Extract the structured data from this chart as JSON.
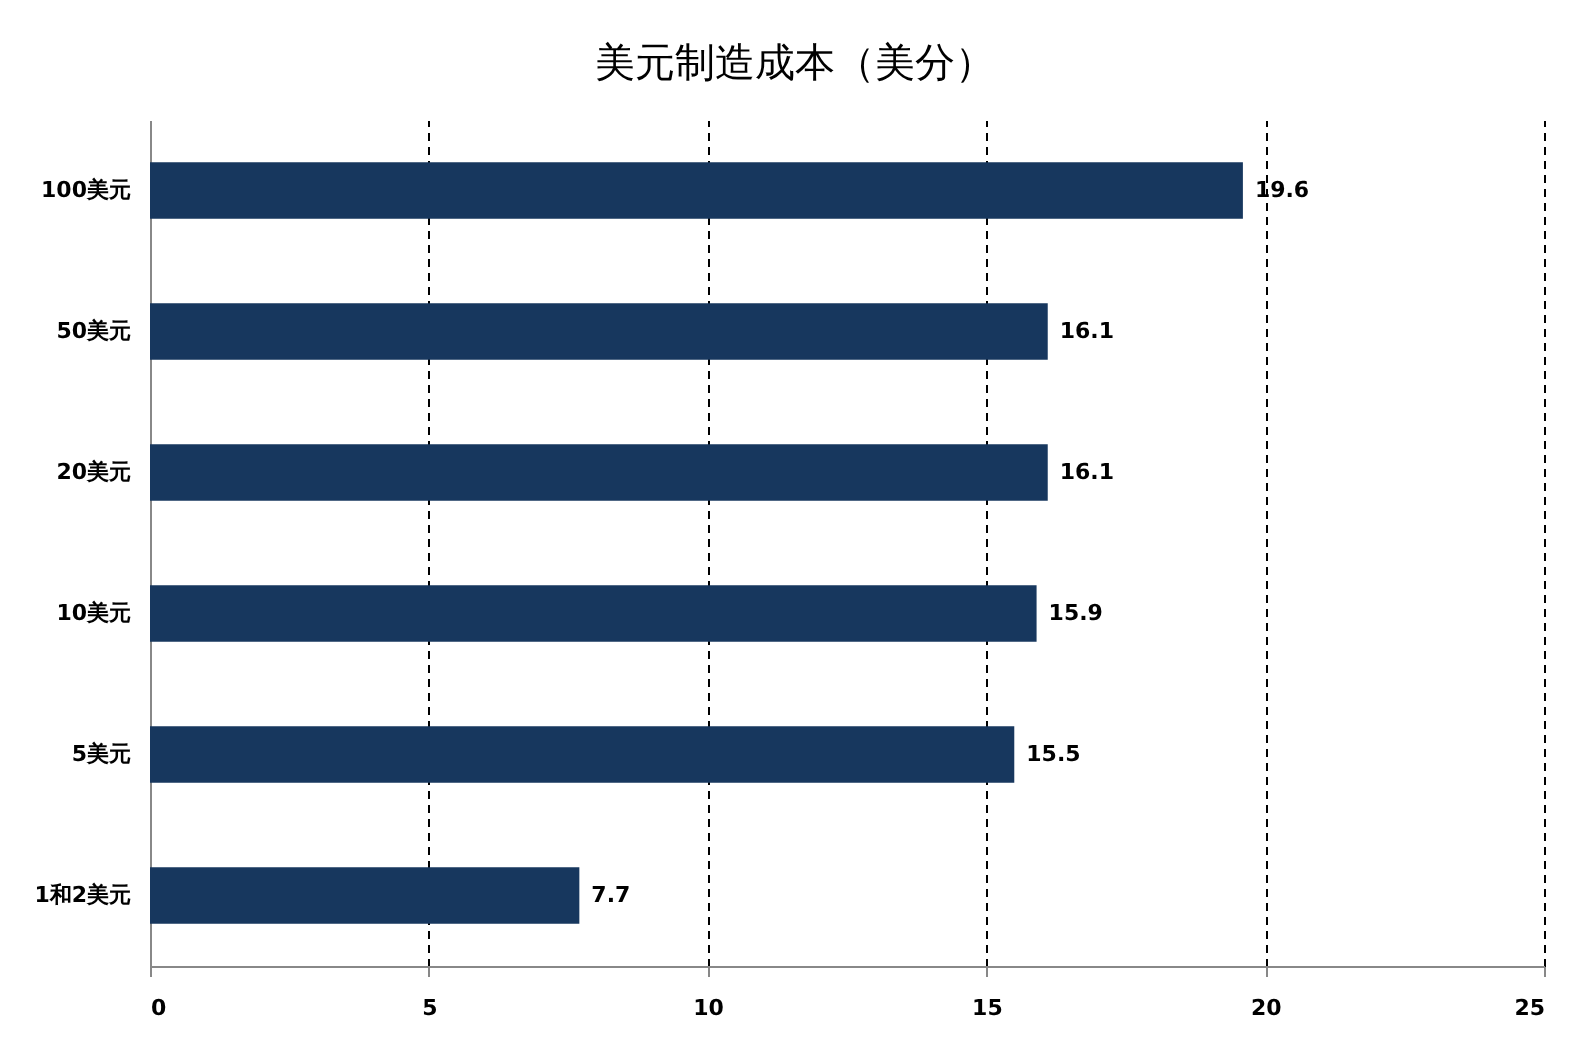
{
  "chart_data": {
    "type": "bar",
    "title": "美元制造成本（美分）",
    "orientation": "horizontal",
    "categories": [
      "100美元",
      "50美元",
      "20美元",
      "10美元",
      "5美元",
      "1和2美元"
    ],
    "values": [
      19.6,
      16.1,
      16.1,
      15.9,
      15.5,
      7.7
    ],
    "color": "#17375e",
    "xlim": [
      0,
      25
    ],
    "xticks": [
      0,
      5,
      10,
      15,
      20,
      25
    ],
    "grid": "x",
    "data_labels": true
  }
}
